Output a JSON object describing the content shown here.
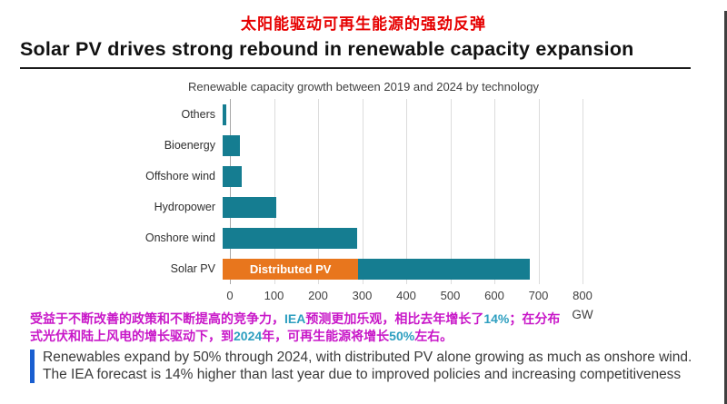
{
  "page": {
    "subtitle_cn": "太阳能驱动可再生能源的强劲反弹",
    "title": "Solar PV drives strong rebound in renewable capacity expansion"
  },
  "chart_data": {
    "type": "bar",
    "orientation": "horizontal",
    "title": "Renewable capacity growth between 2019 and 2024 by technology",
    "unit_label": "GW",
    "xlim": [
      0,
      800
    ],
    "x_ticks": [
      0,
      100,
      200,
      300,
      400,
      500,
      600,
      700,
      800
    ],
    "grid": "vertical",
    "colors": {
      "teal": "#157d91",
      "orange": "#e8761d"
    },
    "bars": [
      {
        "label": "Others",
        "segments": [
          {
            "series": "total",
            "value": 8,
            "color": "teal"
          }
        ]
      },
      {
        "label": "Bioenergy",
        "segments": [
          {
            "series": "total",
            "value": 40,
            "color": "teal"
          }
        ]
      },
      {
        "label": "Offshore wind",
        "segments": [
          {
            "series": "total",
            "value": 43,
            "color": "teal"
          }
        ]
      },
      {
        "label": "Hydropower",
        "segments": [
          {
            "series": "total",
            "value": 121,
            "color": "teal"
          }
        ]
      },
      {
        "label": "Onshore wind",
        "segments": [
          {
            "series": "total",
            "value": 305,
            "color": "teal"
          }
        ]
      },
      {
        "label": "Solar PV",
        "segments": [
          {
            "series": "Distributed PV",
            "value": 308,
            "color": "orange",
            "label": "Distributed PV"
          },
          {
            "series": "Utility PV",
            "value": 389,
            "color": "teal"
          }
        ]
      }
    ]
  },
  "annotation_cn": {
    "colors": {
      "magenta": "#c817c8",
      "teal": "#2e9fc0"
    },
    "parts": [
      {
        "text": "受益于不断改善的政策和不断提高的竞争力，",
        "color": "magenta"
      },
      {
        "text": "IEA",
        "color": "teal"
      },
      {
        "text": "预测更加乐观，相比去年增长了",
        "color": "magenta"
      },
      {
        "text": "14%",
        "color": "teal"
      },
      {
        "text": "；在分布式光伏和陆上风电的增长驱动下，到",
        "color": "magenta"
      },
      {
        "text": "2024",
        "color": "teal"
      },
      {
        "text": "年，可再生能源将增长",
        "color": "magenta"
      },
      {
        "text": "50%",
        "color": "teal"
      },
      {
        "text": "左右。",
        "color": "magenta"
      }
    ]
  },
  "note": {
    "text": "Renewables expand by 50% through 2024, with distributed PV alone growing as much as onshore wind. The IEA forecast is 14% higher than last year due to improved policies and increasing competitiveness",
    "accent_color": "#1a5fd0"
  }
}
